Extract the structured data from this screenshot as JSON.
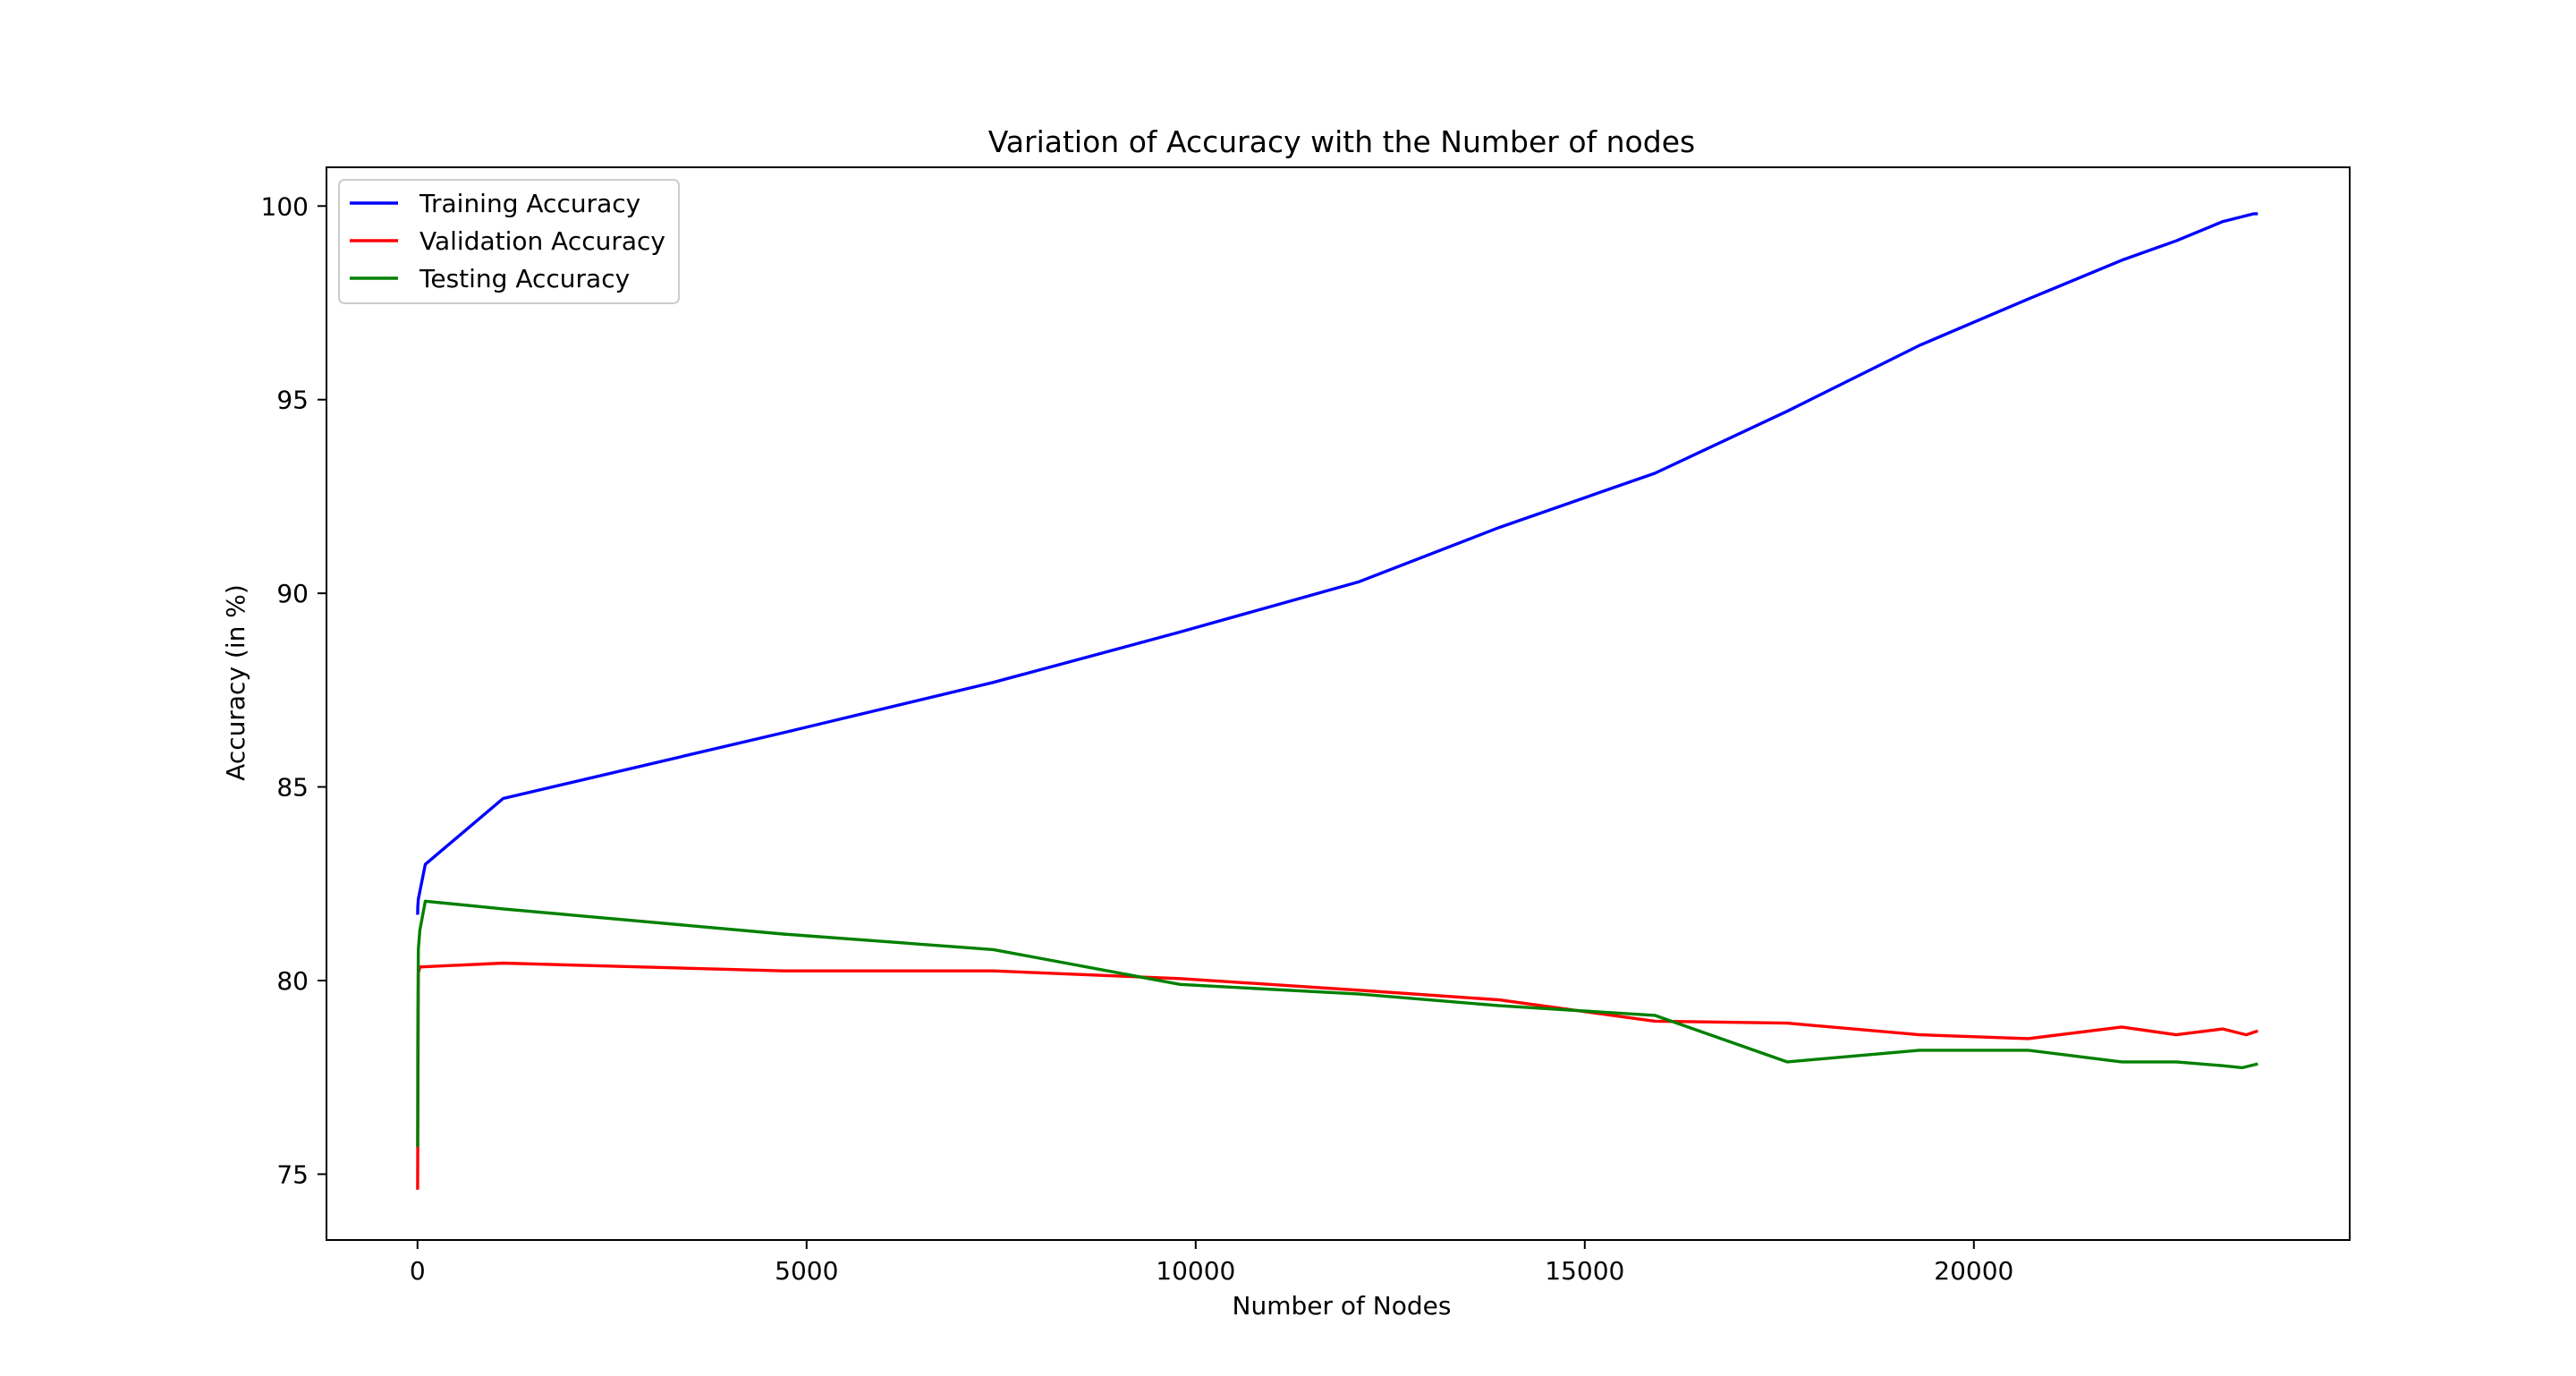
{
  "chart_data": {
    "type": "line",
    "title": "Variation of Accuracy with the Number of nodes",
    "xlabel": "Number of Nodes",
    "ylabel": "Accuracy (in %)",
    "xlim": [
      -1170,
      24830
    ],
    "ylim": [
      73.3,
      101.0
    ],
    "xticks": [
      0,
      5000,
      10000,
      15000,
      20000
    ],
    "yticks": [
      75,
      80,
      85,
      90,
      95,
      100
    ],
    "grid": false,
    "legend_position": "upper-left",
    "series": [
      {
        "name": "Training Accuracy",
        "color": "#0000ff",
        "x": [
          1,
          3,
          10,
          30,
          100,
          1100,
          4700,
          7400,
          9800,
          12100,
          13900,
          15900,
          17600,
          19300,
          20700,
          21900,
          22600,
          23200,
          23600,
          23650
        ],
        "y": [
          81.7,
          81.9,
          82.1,
          82.3,
          83.0,
          84.7,
          86.4,
          87.7,
          89.0,
          90.3,
          91.7,
          93.1,
          94.7,
          96.4,
          97.6,
          98.6,
          99.1,
          99.6,
          99.8,
          99.8
        ]
      },
      {
        "name": "Validation Accuracy",
        "color": "#ff0000",
        "x": [
          1,
          3,
          10,
          30,
          1100,
          4700,
          7400,
          9800,
          12100,
          13900,
          15900,
          17600,
          19300,
          20700,
          21900,
          22600,
          23200,
          23500,
          23650
        ],
        "y": [
          74.6,
          75.8,
          80.2,
          80.35,
          80.45,
          80.25,
          80.25,
          80.05,
          79.75,
          79.5,
          78.95,
          78.9,
          78.6,
          78.5,
          78.8,
          78.6,
          78.75,
          78.6,
          78.7
        ]
      },
      {
        "name": "Testing Accuracy",
        "color": "#008000",
        "x": [
          1,
          3,
          10,
          30,
          100,
          1100,
          4700,
          7400,
          9800,
          12100,
          13900,
          15900,
          17600,
          19300,
          20700,
          21900,
          22600,
          23200,
          23450,
          23650
        ],
        "y": [
          75.7,
          78.5,
          80.8,
          81.3,
          82.05,
          81.85,
          81.2,
          80.8,
          79.9,
          79.65,
          79.35,
          79.1,
          77.9,
          78.2,
          78.2,
          77.9,
          77.9,
          77.8,
          77.75,
          77.85
        ]
      }
    ]
  }
}
